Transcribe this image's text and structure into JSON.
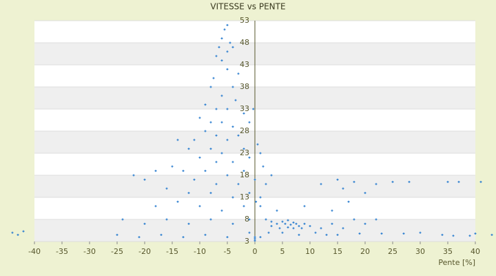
{
  "chart_data": {
    "type": "scatter",
    "title": "VITESSE vs PENTE",
    "x_label": "Pente [%]",
    "xlim": [
      -40,
      40
    ],
    "ylim": [
      3,
      53
    ],
    "xticks": [
      -40,
      -35,
      -30,
      -25,
      -20,
      -15,
      -10,
      -5,
      0,
      5,
      10,
      15,
      20,
      25,
      30,
      35,
      40
    ],
    "yticks": [
      3,
      8,
      13,
      18,
      23,
      28,
      33,
      38,
      43,
      48,
      53
    ],
    "color": "#2f80d0",
    "grid": true,
    "x": [
      -5,
      -5.5,
      -6,
      -4.5,
      -6.5,
      -5,
      -4,
      -7,
      -6,
      -5,
      -3,
      -7.5,
      -8,
      -4,
      -6,
      -3.5,
      -9,
      -7,
      -5,
      -2,
      -10,
      -8,
      -6,
      -4,
      -1,
      -9,
      -7,
      -5,
      -3,
      -11,
      -14,
      -12,
      -8,
      -6,
      -2,
      0.5,
      -10,
      -7,
      -4,
      -1,
      1,
      -15,
      -13,
      -9,
      -5,
      -2,
      1.5,
      3,
      -22,
      -18,
      -11,
      -7,
      -3,
      0,
      2,
      -20,
      -16,
      -12,
      -8,
      -4,
      -1,
      1,
      15,
      18,
      22,
      25,
      28,
      35,
      37,
      41,
      12,
      16,
      20,
      -18,
      -14,
      -10,
      -6,
      -2,
      1,
      4,
      9,
      14,
      17,
      -24,
      -20,
      -16,
      -12,
      -8,
      -4,
      -1,
      2,
      3,
      4,
      5,
      5.5,
      6,
      6.5,
      7,
      7.5,
      8,
      9,
      10,
      12,
      14,
      16,
      18,
      20,
      22,
      3,
      4.5,
      6,
      7,
      8.5,
      2.5,
      5,
      8,
      11,
      13,
      -25,
      -21,
      -17,
      -13,
      -9,
      -5,
      -1,
      1,
      15,
      19,
      23,
      27,
      30,
      34,
      36,
      39,
      40,
      43,
      -44,
      -43,
      -42,
      0,
      0,
      0,
      0.2,
      -0.3
    ],
    "values": [
      52,
      51,
      49,
      48,
      47,
      46,
      47,
      45,
      44,
      42,
      41,
      40,
      38,
      38,
      36,
      35,
      34,
      33,
      33,
      32,
      31,
      30,
      30,
      29,
      30,
      28,
      27,
      26,
      27,
      26,
      26,
      24,
      24,
      23,
      24,
      25,
      22,
      21,
      21,
      22,
      23,
      20,
      19,
      19,
      18,
      19,
      20,
      18,
      18,
      19,
      17,
      16,
      16,
      17,
      16,
      17,
      15,
      14,
      14,
      13,
      14,
      13,
      17,
      16.5,
      16,
      16.5,
      16.5,
      16.5,
      16.5,
      16.5,
      16,
      15,
      14,
      11,
      12,
      11,
      10,
      11,
      11,
      10,
      11,
      10,
      12,
      8,
      7,
      8,
      7,
      8,
      7,
      8,
      8,
      7.5,
      7,
      7.5,
      7,
      7.8,
      6.8,
      7.3,
      7,
      6.5,
      7,
      6.5,
      6,
      7,
      6,
      8,
      7,
      8,
      6.5,
      6,
      6.2,
      6,
      6,
      5,
      5,
      4.5,
      5,
      4.5,
      4.5,
      4,
      4.5,
      4,
      4.5,
      4,
      5,
      4,
      4.5,
      4.8,
      4.8,
      4.8,
      5,
      4.5,
      4.3,
      4.3,
      4.8,
      4.5,
      5,
      4.5,
      5.3,
      3.2,
      3.6,
      4,
      12,
      33
    ]
  }
}
